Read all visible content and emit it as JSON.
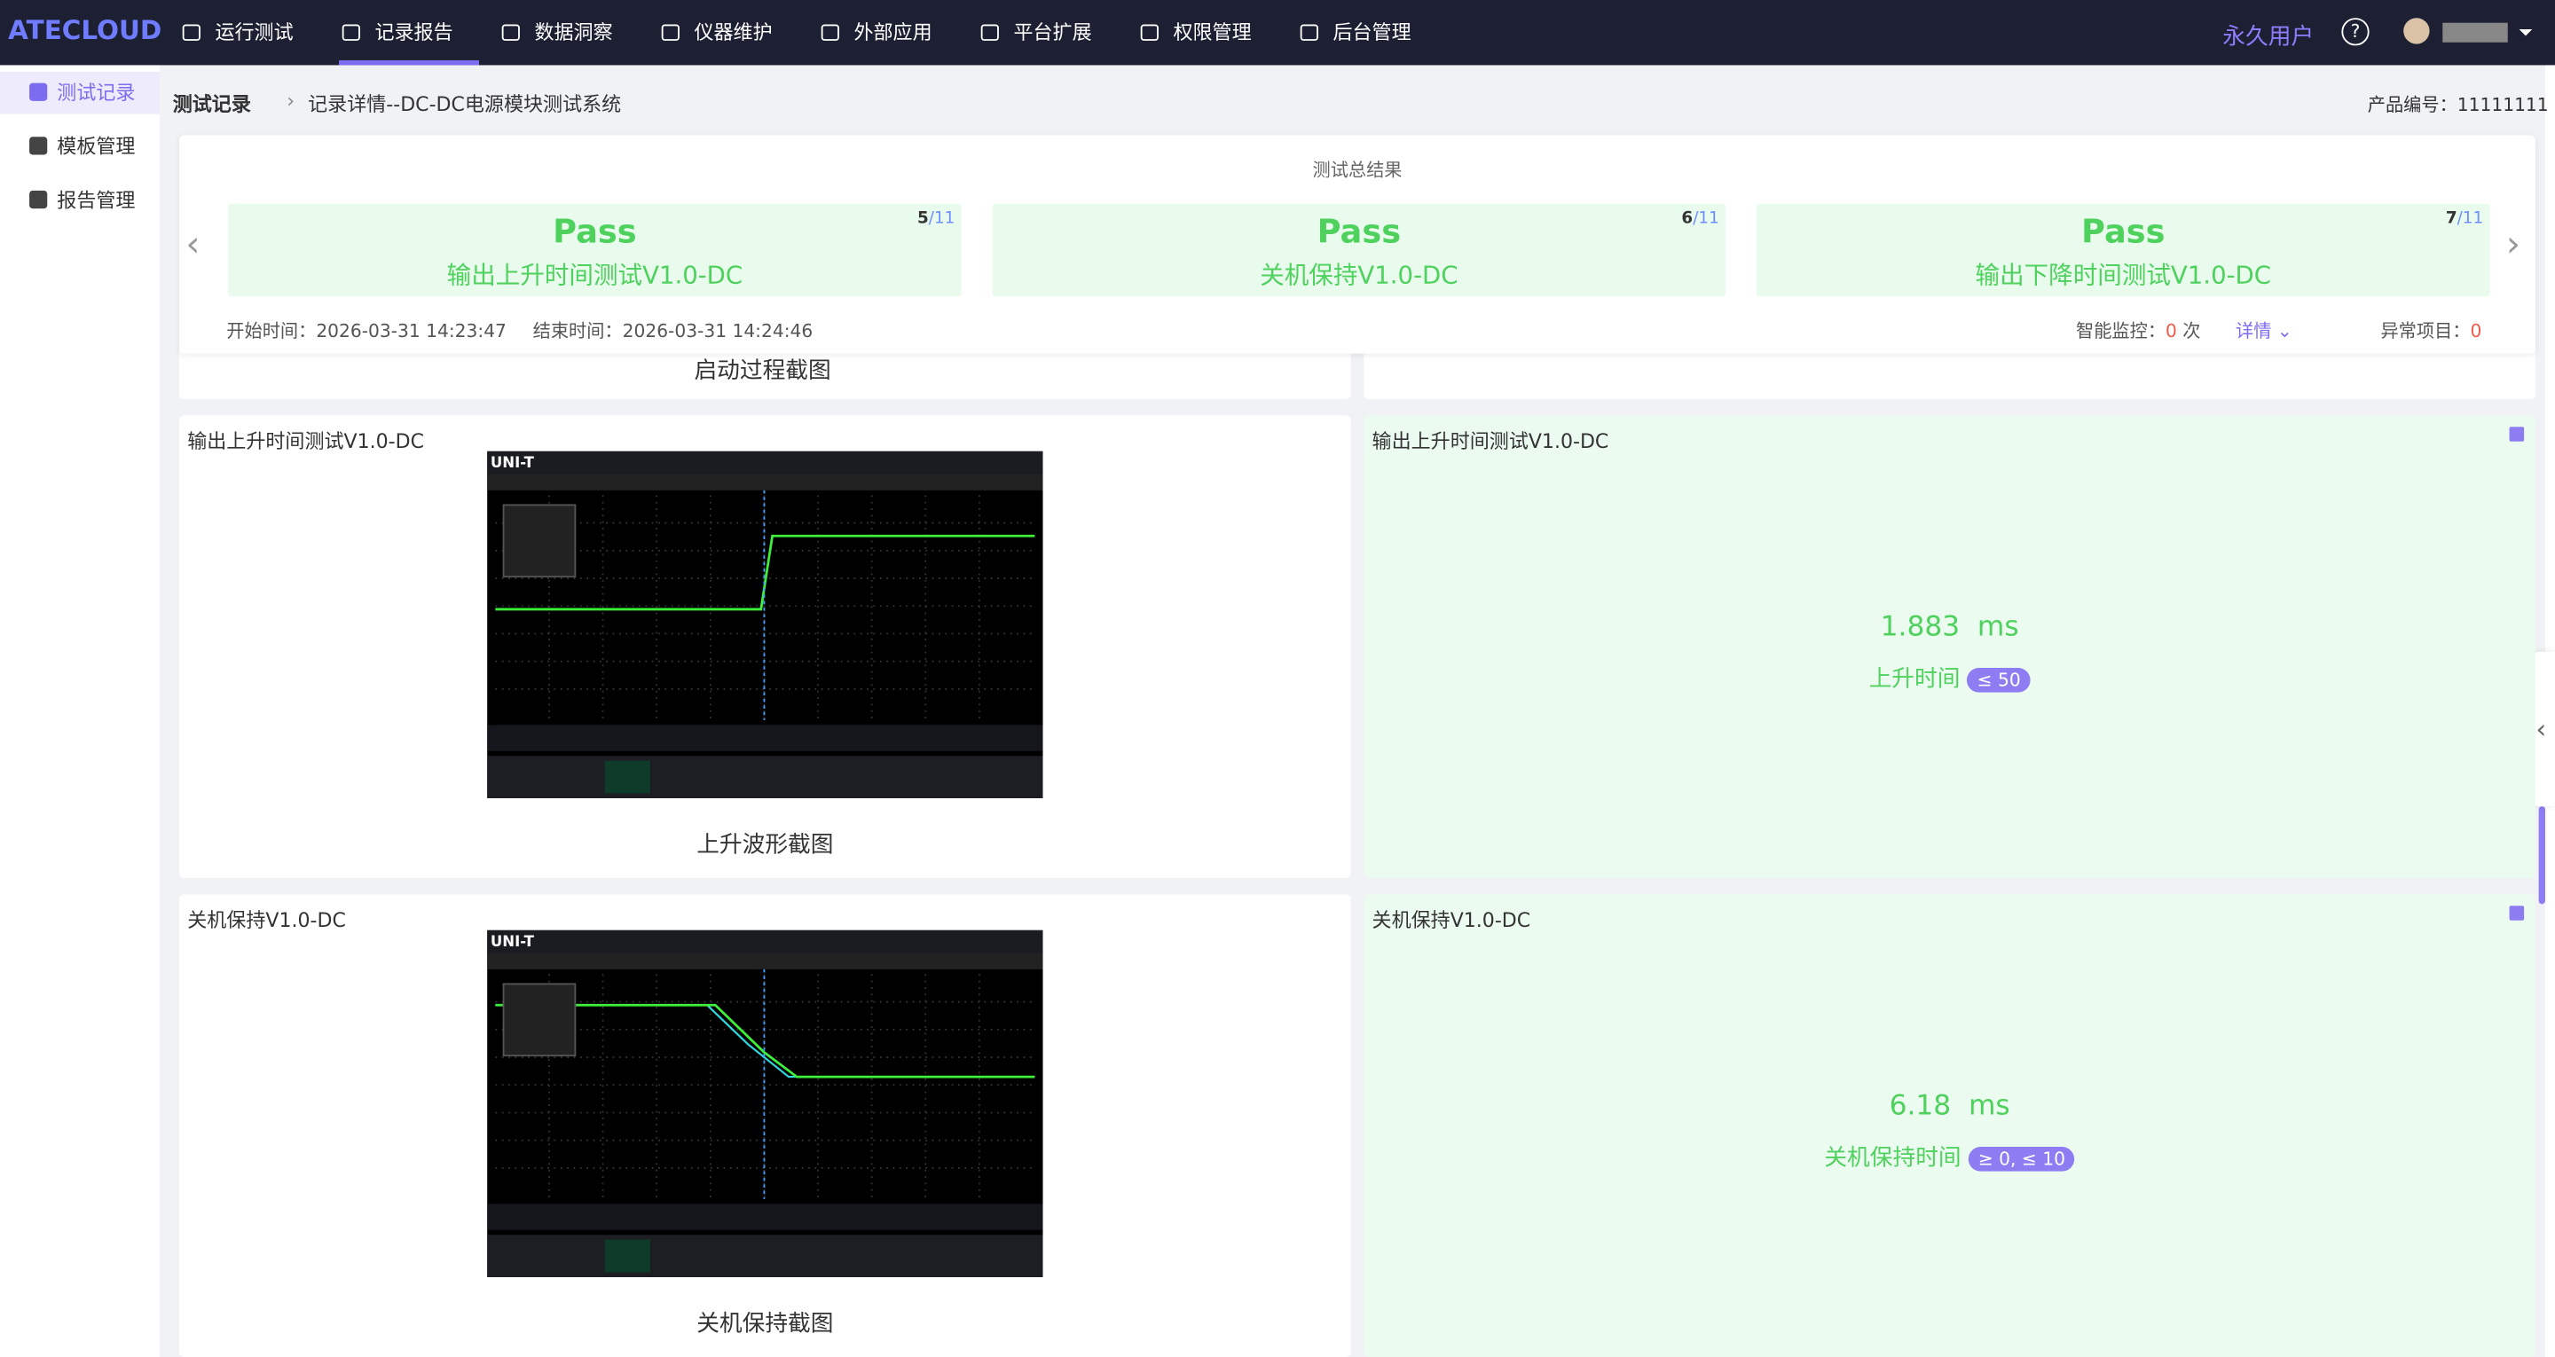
{
  "app": {
    "logo": "ATECLOUD",
    "nav": [
      "运行测试",
      "记录报告",
      "数据洞察",
      "仪器维护",
      "外部应用",
      "平台扩展",
      "权限管理",
      "后台管理"
    ],
    "user": "永久用户",
    "help": "?"
  },
  "sidebar": [
    "测试记录",
    "模板管理",
    "报告管理"
  ],
  "breadcrumb": {
    "root": "测试记录",
    "current": "记录详情--DC-DC电源模块测试系统"
  },
  "product": {
    "label": "产品编号：",
    "value": "11111111"
  },
  "summary": {
    "title": "测试总结果",
    "cards": [
      {
        "position": "5",
        "total": "/11",
        "status": "Pass",
        "name": "输出上升时间测试V1.0-DC"
      },
      {
        "position": "6",
        "total": "/11",
        "status": "Pass",
        "name": "关机保持V1.0-DC"
      },
      {
        "position": "7",
        "total": "/11",
        "status": "Pass",
        "name": "输出下降时间测试V1.0-DC"
      }
    ],
    "start_label": "开始时间：",
    "start": "2026-03-31 14:23:47",
    "end_label": "结束时间：",
    "end": "2026-03-31 14:24:46",
    "monitor_label": "智能监控：",
    "monitor_count": "0",
    "monitor_unit": "次",
    "detail": "详情",
    "abnormal_label": "异常项目：",
    "abnormal_count": "0"
  },
  "partial_caption": "启动过程截图",
  "records": [
    {
      "title": "输出上升时间测试V1.0-DC",
      "caption": "上升波形截图",
      "result_title": "输出上升时间测试V1.0-DC",
      "value": "1.883",
      "unit": "ms",
      "param": "上升时间",
      "limit": "≤ 50"
    },
    {
      "title": "关机保持V1.0-DC",
      "caption": "关机保持截图",
      "result_title": "关机保持V1.0-DC",
      "value": "6.18",
      "unit": "ms",
      "param": "关机保持时间",
      "limit": "≥ 0, ≤ 10"
    }
  ],
  "scope_brand": "UNI-T"
}
